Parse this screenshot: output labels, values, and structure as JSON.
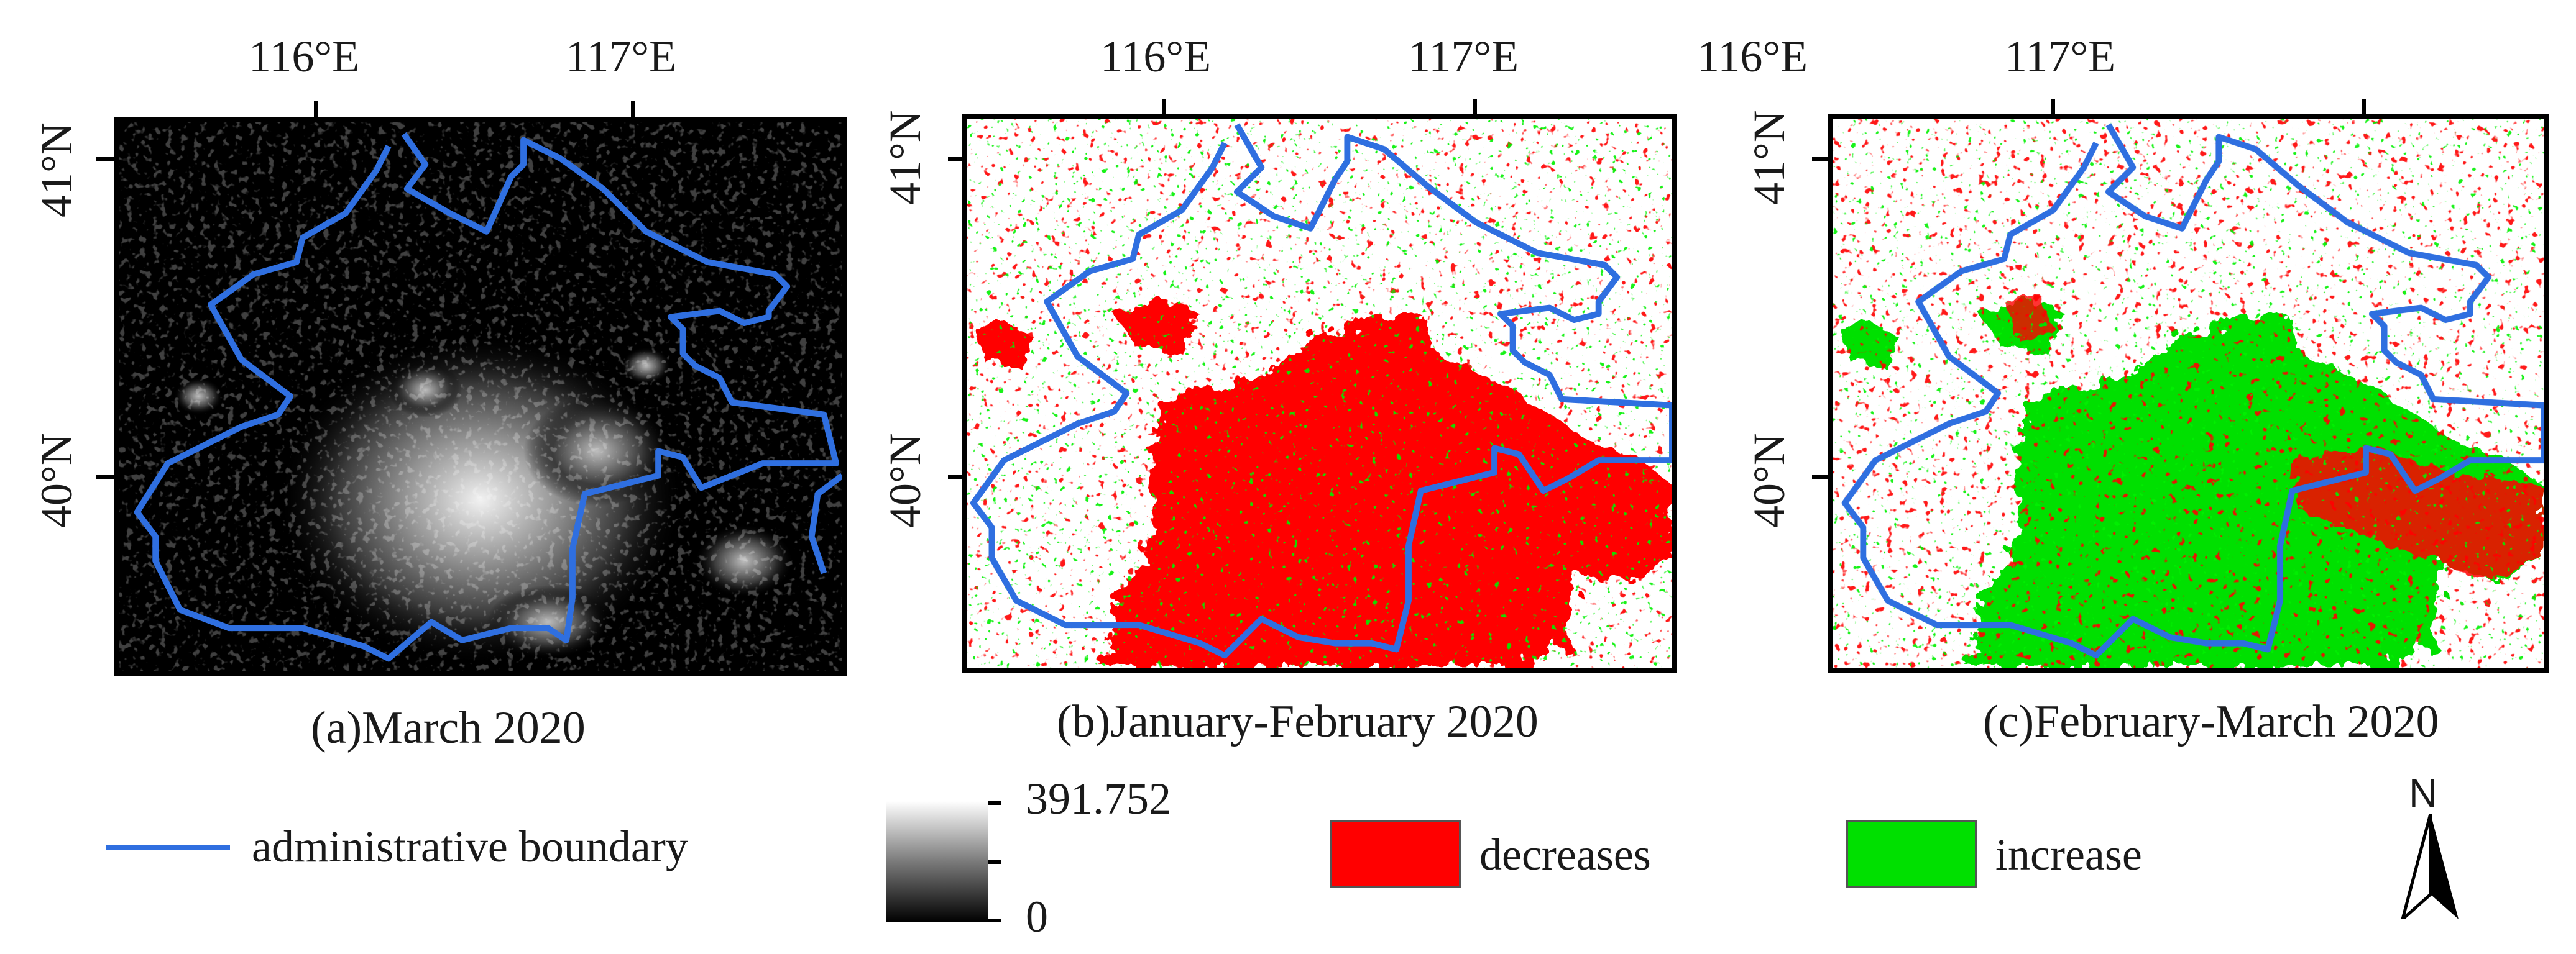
{
  "panels": [
    {
      "id": "a",
      "caption": "(a)March 2020",
      "lon_labels": [
        "116°E",
        "117°E"
      ],
      "lat_labels": [
        "41°N",
        "40°N"
      ],
      "background": "#000000"
    },
    {
      "id": "b",
      "caption": "(b)January-February 2020",
      "lon_labels": [
        "116°E",
        "117°E"
      ],
      "lat_labels": [
        "41°N",
        "40°N"
      ],
      "background": "#ffffff",
      "dominant_change": "decreases"
    },
    {
      "id": "c",
      "caption": "(c)February-March 2020",
      "lon_labels": [
        "116°E",
        "117°E"
      ],
      "lat_labels": [
        "41°N",
        "40°N"
      ],
      "background": "#ffffff",
      "dominant_change": "increase"
    }
  ],
  "legend": {
    "boundary_label": "administrative boundary",
    "scale_max": "391.752",
    "scale_min": "0",
    "decrease_label": "decreases",
    "increase_label": "increase",
    "north_label": "N"
  },
  "colors": {
    "boundary": "#2f6fe0",
    "decrease": "#ff0000",
    "increase": "#00e000"
  }
}
